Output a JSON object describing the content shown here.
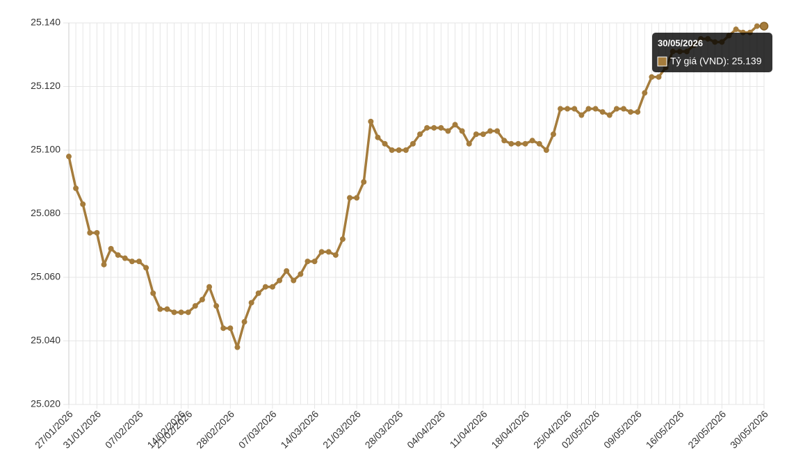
{
  "chart_data": {
    "type": "line",
    "categories": [
      "27/01/2026",
      null,
      null,
      null,
      "31/01/2026",
      null,
      null,
      null,
      null,
      null,
      "07/02/2026",
      null,
      null,
      null,
      null,
      null,
      "14/02/2026",
      "21/02/2026",
      null,
      null,
      null,
      null,
      null,
      "28/02/2026",
      null,
      null,
      null,
      null,
      null,
      "07/03/2026",
      null,
      null,
      null,
      null,
      null,
      "14/03/2026",
      null,
      null,
      null,
      null,
      null,
      "21/03/2026",
      null,
      null,
      null,
      null,
      null,
      "28/03/2026",
      null,
      null,
      null,
      null,
      null,
      "04/04/2026",
      null,
      null,
      null,
      null,
      null,
      "11/04/2026",
      null,
      null,
      null,
      null,
      null,
      "18/04/2026",
      null,
      null,
      null,
      null,
      null,
      "25/04/2026",
      null,
      null,
      null,
      "02/05/2026",
      null,
      null,
      null,
      null,
      null,
      "09/05/2026",
      null,
      null,
      null,
      null,
      null,
      "16/05/2026",
      null,
      null,
      null,
      null,
      null,
      "23/05/2026",
      null,
      null,
      null,
      null,
      null,
      "30/05/2026"
    ],
    "series": [
      {
        "name": "Tỷ giá (VND)",
        "color": "#a57c3c",
        "values": [
          25098,
          25088,
          25083,
          25074,
          25074,
          25064,
          25069,
          25067,
          25066,
          25065,
          25065,
          25063,
          25055,
          25050,
          25050,
          25049,
          25049,
          25049,
          25051,
          25053,
          25057,
          25051,
          25044,
          25044,
          25038,
          25046,
          25052,
          25055,
          25057,
          25057,
          25059,
          25062,
          25059,
          25061,
          25065,
          25065,
          25068,
          25068,
          25067,
          25072,
          25085,
          25085,
          25090,
          25109,
          25104,
          25102,
          25100,
          25100,
          25100,
          25102,
          25105,
          25107,
          25107,
          25107,
          25106,
          25108,
          25106,
          25102,
          25105,
          25105,
          25106,
          25106,
          25103,
          25102,
          25102,
          25102,
          25103,
          25102,
          25100,
          25105,
          25113,
          25113,
          25113,
          25111,
          25113,
          25113,
          25112,
          25111,
          25113,
          25113,
          25112,
          25112,
          25118,
          25123,
          25123,
          25126,
          25131,
          25131,
          25131,
          25133,
          25135,
          25135,
          25134,
          25134,
          25136,
          25138,
          25137,
          25137,
          25139,
          25139
        ]
      }
    ],
    "ylim": [
      25020,
      25140
    ],
    "yticks": [
      {
        "value": 25020,
        "label": "25.020"
      },
      {
        "value": 25040,
        "label": "25.040"
      },
      {
        "value": 25060,
        "label": "25.060"
      },
      {
        "value": 25080,
        "label": "25.080"
      },
      {
        "value": 25100,
        "label": "25.100"
      },
      {
        "value": 25120,
        "label": "25.120"
      },
      {
        "value": 25140,
        "label": "25.140"
      }
    ],
    "grid": true,
    "tooltip": {
      "title": "30/05/2026",
      "text": "Tỷ giá (VND): 25.139"
    }
  }
}
